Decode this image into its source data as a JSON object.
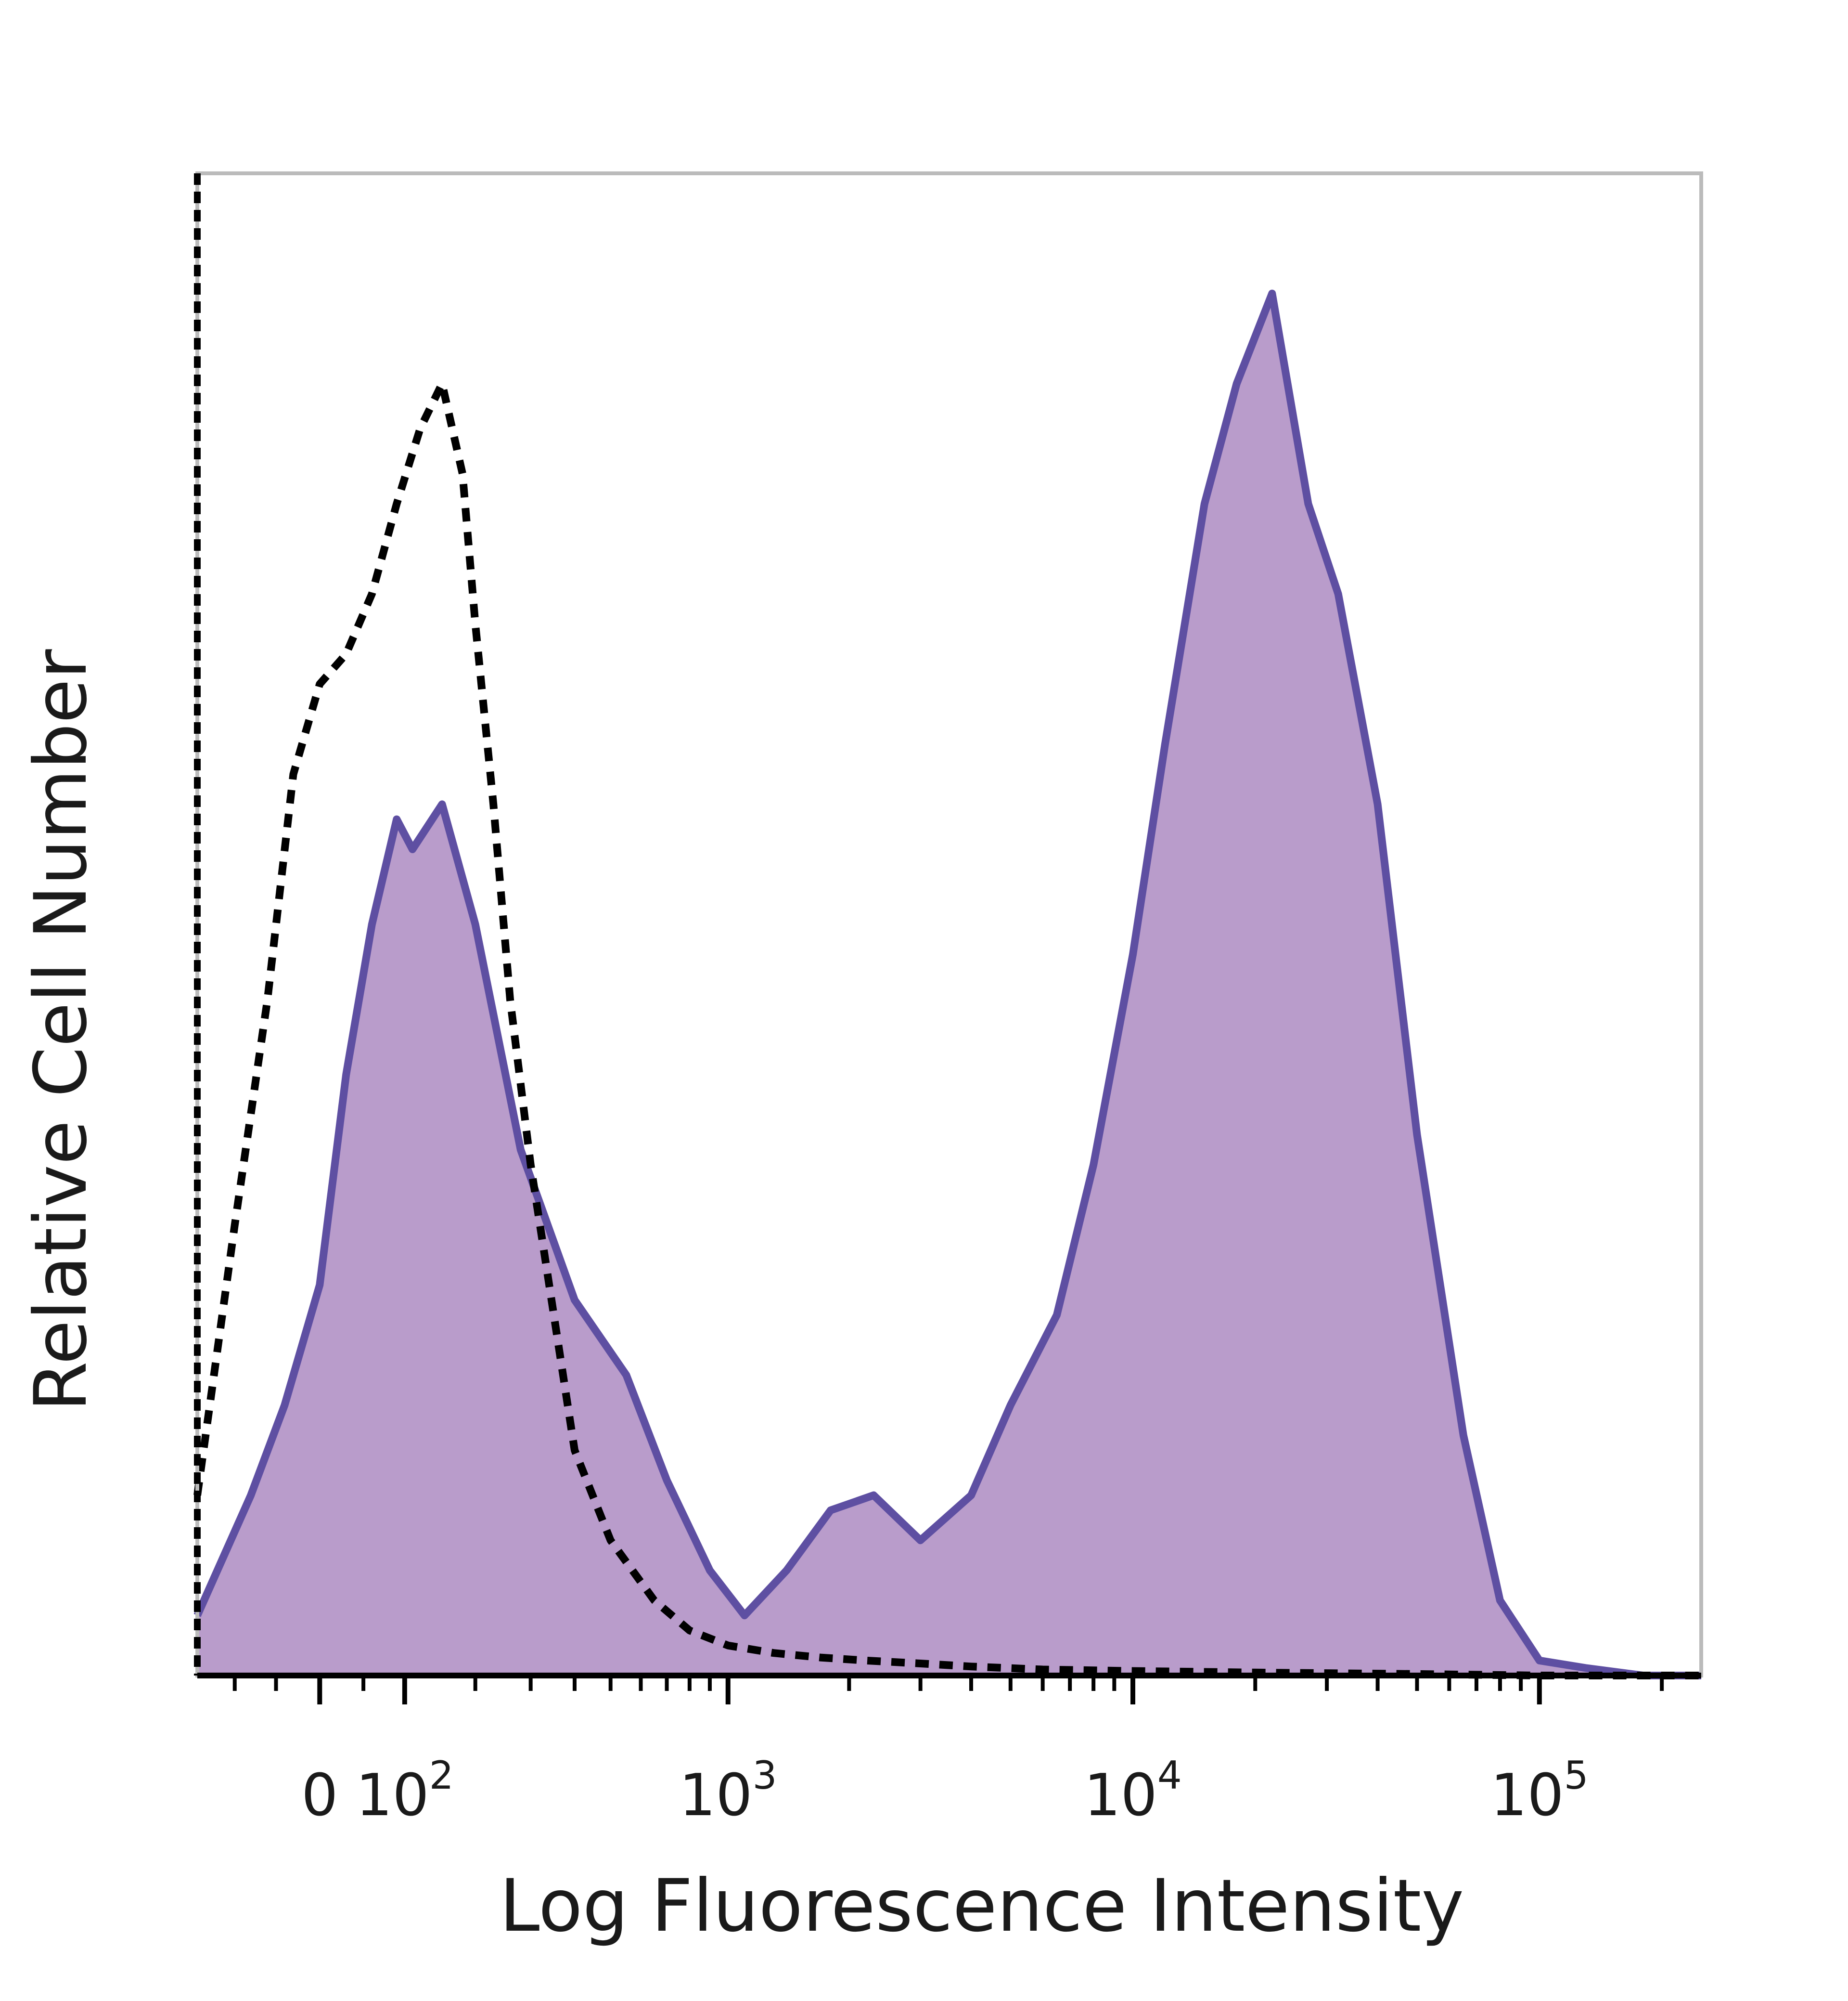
{
  "chart_data": {
    "type": "area",
    "xlabel": "Log Fluorescence Intensity",
    "ylabel": "Relative Cell Number",
    "x_scale": "biexponential",
    "x_ticks": [
      {
        "value": 0,
        "base": "0",
        "exp": ""
      },
      {
        "value": 100,
        "base": "10",
        "exp": "2"
      },
      {
        "value": 1000,
        "base": "10",
        "exp": "3"
      },
      {
        "value": 10000,
        "base": "10",
        "exp": "4"
      },
      {
        "value": 100000,
        "base": "10",
        "exp": "5"
      }
    ],
    "xlim": [
      -150,
      250000
    ],
    "ylim": [
      0,
      100
    ],
    "grid": false,
    "legend": "none",
    "colors": {
      "stained_line": "#5e4fa2",
      "stained_fill": "#b99ccb",
      "control_line": "#000000",
      "frame": "#bbbbbb"
    },
    "series": [
      {
        "style": "filled-solid",
        "x": [
          -150,
          -80,
          -40,
          0,
          30,
          60,
          90,
          110,
          150,
          200,
          280,
          400,
          550,
          700,
          900,
          1100,
          1400,
          1800,
          2300,
          3000,
          4000,
          5000,
          6500,
          8000,
          10000,
          12000,
          15000,
          18000,
          22000,
          27000,
          32000,
          40000,
          50000,
          65000,
          80000,
          100000,
          130000,
          180000,
          250000
        ],
        "y": [
          4,
          12,
          18,
          26,
          40,
          50,
          57,
          55,
          58,
          50,
          35,
          25,
          20,
          13,
          7,
          4,
          7,
          11,
          12,
          9,
          12,
          18,
          24,
          34,
          48,
          62,
          78,
          86,
          92,
          78,
          72,
          58,
          36,
          16,
          5,
          1,
          0.5,
          0,
          0
        ]
      },
      {
        "style": "dashed",
        "x": [
          -150,
          -100,
          -60,
          -30,
          0,
          30,
          60,
          90,
          120,
          150,
          180,
          200,
          230,
          260,
          300,
          350,
          400,
          500,
          650,
          800,
          1000,
          1300,
          1700,
          2200,
          3000,
          4000,
          6000,
          10000,
          20000,
          50000,
          100000,
          250000
        ],
        "y": [
          12,
          30,
          45,
          60,
          66,
          68,
          72,
          78,
          83,
          86,
          80,
          70,
          58,
          45,
          34,
          24,
          15,
          9,
          5,
          3,
          2,
          1.5,
          1.2,
          1,
          0.8,
          0.6,
          0.4,
          0.3,
          0.2,
          0.1,
          0,
          0
        ]
      }
    ]
  }
}
